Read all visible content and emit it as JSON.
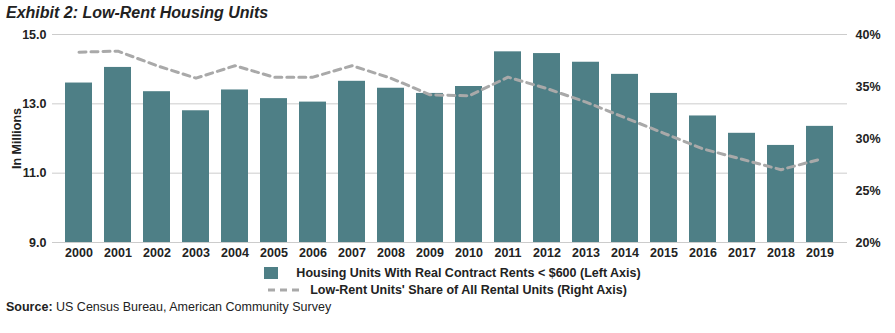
{
  "chart_data": {
    "type": "bar",
    "title": "Exhibit 2: Low-Rent Housing Units",
    "y_label": "In Millions",
    "categories": [
      "2000",
      "2001",
      "2002",
      "2003",
      "2004",
      "2005",
      "2006",
      "2007",
      "2008",
      "2009",
      "2010",
      "2011",
      "2012",
      "2013",
      "2014",
      "2015",
      "2016",
      "2017",
      "2018",
      "2019"
    ],
    "series": [
      {
        "name": "Housing Units With Real Contract Rents < $600 (Left Axis)",
        "type": "bar",
        "color": "#4e7f86",
        "values": [
          13.6,
          14.05,
          13.35,
          12.8,
          13.4,
          13.15,
          13.05,
          13.65,
          13.45,
          13.3,
          13.5,
          14.5,
          14.45,
          14.2,
          13.85,
          13.3,
          12.65,
          12.15,
          11.8,
          12.35
        ]
      },
      {
        "name": "Low-Rent Units' Share of All Rental Units (Right Axis)",
        "type": "line",
        "color": "#a9a9a9",
        "line_style": "dashed",
        "axis": "y2",
        "values": [
          38.3,
          38.4,
          37.0,
          35.8,
          37.0,
          35.9,
          35.9,
          37.0,
          35.8,
          34.2,
          34.1,
          35.9,
          34.8,
          33.5,
          32.0,
          30.5,
          29.0,
          28.0,
          27.0,
          28.0
        ]
      }
    ],
    "ylim": [
      9,
      15
    ],
    "yticks": [
      9,
      11,
      13,
      15
    ],
    "y2lim": [
      20,
      40
    ],
    "y2ticks": [
      {
        "value": 20,
        "label": "20%"
      },
      {
        "value": 25,
        "label": "25%"
      },
      {
        "value": 30,
        "label": "30%"
      },
      {
        "value": 35,
        "label": "35%"
      },
      {
        "value": 40,
        "label": "40%"
      }
    ],
    "grid": true,
    "legend": "bottom",
    "source": {
      "label": "Source:",
      "text": "US Census Bureau, American Community Survey"
    }
  }
}
